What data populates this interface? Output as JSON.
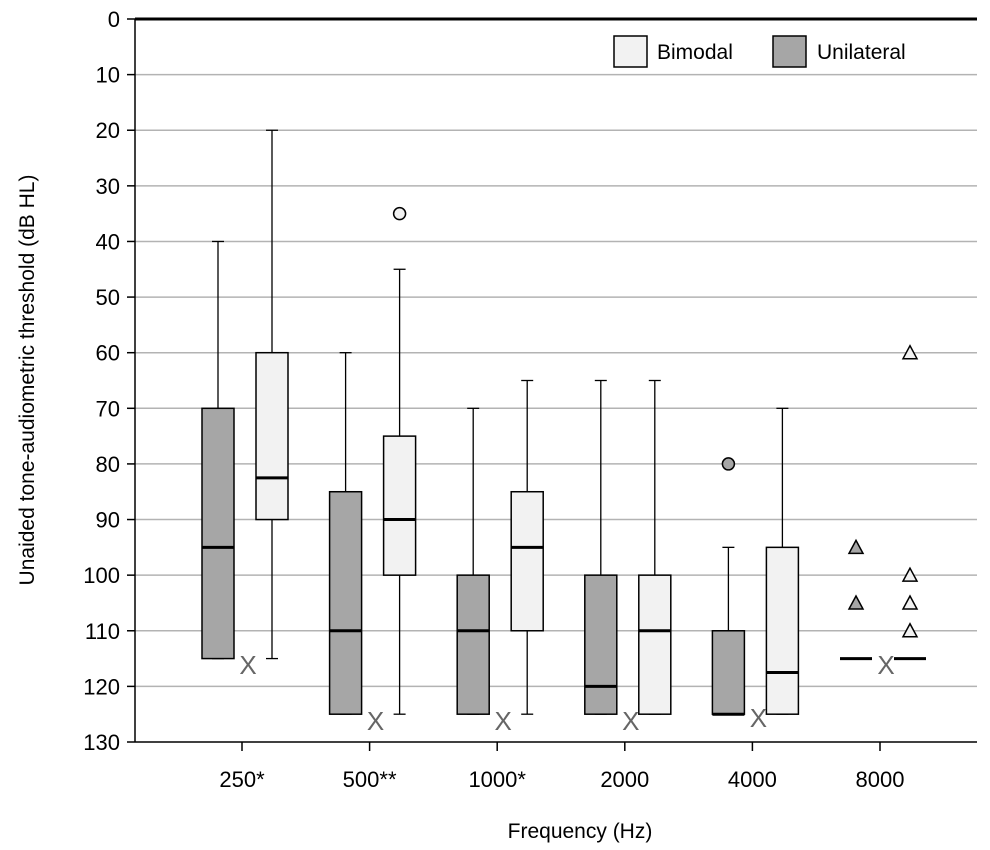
{
  "chart_data": {
    "type": "box",
    "xlabel": "Frequency (Hz)",
    "ylabel": "Unaided tone-audiometric threshold (dB HL)",
    "ylim": [
      0,
      130
    ],
    "y_reversed": true,
    "y_ticks": [
      0,
      10,
      20,
      30,
      40,
      50,
      60,
      70,
      80,
      90,
      100,
      110,
      120,
      130
    ],
    "grid": "horizontal",
    "legend_position": "top-right",
    "categories": [
      "250*",
      "500**",
      "1000*",
      "2000",
      "4000",
      "8000"
    ],
    "series": [
      {
        "name": "Unilateral",
        "color": "#a6a6a6",
        "boxes": [
          {
            "category": "250*",
            "whisker_low": 40,
            "q1": 70,
            "median": 95,
            "q3": 115,
            "whisker_high": 115
          },
          {
            "category": "500**",
            "whisker_low": 60,
            "q1": 85,
            "median": 110,
            "q3": 125,
            "whisker_high": 125
          },
          {
            "category": "1000*",
            "whisker_low": 70,
            "q1": 100,
            "median": 110,
            "q3": 125,
            "whisker_high": 125
          },
          {
            "category": "2000",
            "whisker_low": 65,
            "q1": 100,
            "median": 120,
            "q3": 125,
            "whisker_high": 125
          },
          {
            "category": "4000",
            "whisker_low": 95,
            "q1": 110,
            "median": 125,
            "q3": 125,
            "whisker_high": 125
          }
        ],
        "outliers": [
          {
            "category": "4000",
            "value": 80,
            "marker": "circle"
          }
        ],
        "extremes": [
          {
            "category": "8000",
            "value": 95,
            "marker": "triangle"
          },
          {
            "category": "8000",
            "value": 105,
            "marker": "triangle"
          }
        ],
        "median_only": [
          {
            "category": "8000",
            "median": 115
          }
        ]
      },
      {
        "name": "Bimodal",
        "color": "#f2f2f2",
        "boxes": [
          {
            "category": "250*",
            "whisker_low": 20,
            "q1": 60,
            "median": 82.5,
            "q3": 90,
            "whisker_high": 115
          },
          {
            "category": "500**",
            "whisker_low": 45,
            "q1": 75,
            "median": 90,
            "q3": 100,
            "whisker_high": 125
          },
          {
            "category": "1000*",
            "whisker_low": 65,
            "q1": 85,
            "median": 95,
            "q3": 110,
            "whisker_high": 125
          },
          {
            "category": "2000",
            "whisker_low": 65,
            "q1": 100,
            "median": 110,
            "q3": 125,
            "whisker_high": 125
          },
          {
            "category": "4000",
            "whisker_low": 70,
            "q1": 95,
            "median": 117.5,
            "q3": 125,
            "whisker_high": 125
          }
        ],
        "outliers": [
          {
            "category": "500**",
            "value": 35,
            "marker": "circle"
          }
        ],
        "extremes": [
          {
            "category": "8000",
            "value": 60,
            "marker": "triangle"
          },
          {
            "category": "8000",
            "value": 100,
            "marker": "triangle"
          },
          {
            "category": "8000",
            "value": 105,
            "marker": "triangle"
          },
          {
            "category": "8000",
            "value": 110,
            "marker": "triangle"
          }
        ],
        "median_only": [
          {
            "category": "8000",
            "median": 115
          }
        ]
      }
    ],
    "x_markers": [
      {
        "category": "250*",
        "value": 116,
        "label": "X"
      },
      {
        "category": "500**",
        "value": 126,
        "label": "X"
      },
      {
        "category": "1000*",
        "value": 126,
        "label": "X"
      },
      {
        "category": "2000",
        "value": 126,
        "label": "X"
      },
      {
        "category": "4000",
        "value": 125.5,
        "label": "X"
      },
      {
        "category": "8000",
        "value": 116,
        "label": "X"
      }
    ]
  }
}
